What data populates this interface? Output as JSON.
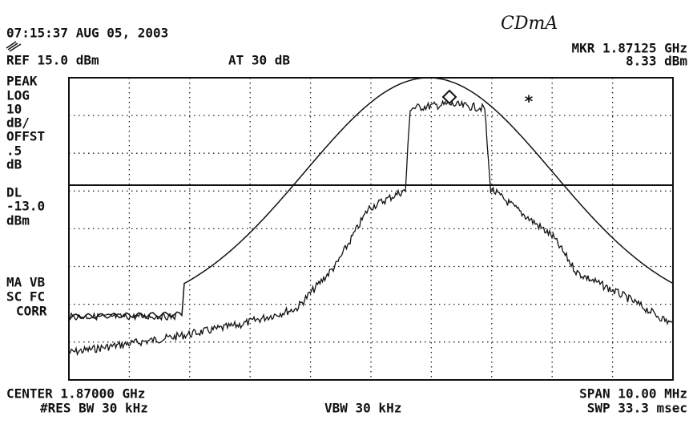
{
  "header": {
    "timestamp": "07:15:37 AUG 05, 2003",
    "note": "CDmA",
    "ref": "REF 15.0 dBm",
    "atten": "AT 30 dB",
    "marker_freq": "MKR 1.87125 GHz",
    "marker_level": "8.33 dBm"
  },
  "side_labels": [
    "PEAK",
    "LOG",
    "10",
    "dB/",
    "OFFST",
    ".5",
    "dB",
    "DL",
    "-13.0",
    "dBm"
  ],
  "side_labels_lower": [
    "MA VB",
    "SC FC",
    "CORR"
  ],
  "footer": {
    "center": "CENTER 1.87000 GHz",
    "res_bw": "#RES BW 30 kHz",
    "vbw": "VBW 30 kHz",
    "span": "SPAN 10.00 MHz",
    "sweep": "SWP 33.3 msec"
  }
}
